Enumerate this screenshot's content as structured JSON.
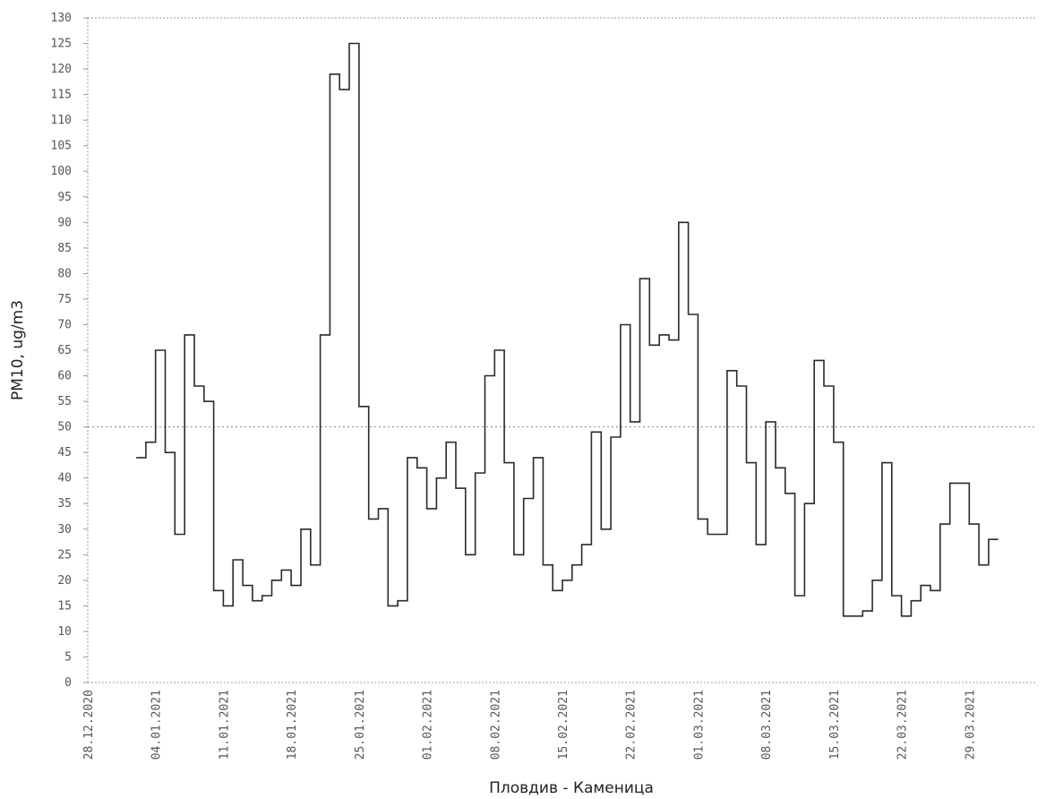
{
  "chart_data": {
    "type": "line",
    "step": true,
    "title": "",
    "xlabel": "Пловдив - Каменица",
    "ylabel": "PM10, ug/m3",
    "ylim": [
      0,
      130
    ],
    "yticks": [
      0,
      5,
      10,
      15,
      20,
      25,
      30,
      35,
      40,
      45,
      50,
      55,
      60,
      65,
      70,
      75,
      80,
      85,
      90,
      95,
      100,
      105,
      110,
      115,
      120,
      125,
      130
    ],
    "xticks": [
      "28.12.2020",
      "04.01.2021",
      "11.01.2021",
      "18.01.2021",
      "25.01.2021",
      "01.02.2021",
      "08.02.2021",
      "15.02.2021",
      "22.02.2021",
      "01.03.2021",
      "08.03.2021",
      "15.03.2021",
      "22.03.2021",
      "29.03.2021"
    ],
    "reference_line": {
      "value": 50
    },
    "grid": false,
    "line_color": "#2a2a2a",
    "series": [
      {
        "x": [
          "2021-01-02",
          "2021-01-03",
          "2021-01-04",
          "2021-01-05",
          "2021-01-06",
          "2021-01-07",
          "2021-01-08",
          "2021-01-09",
          "2021-01-10",
          "2021-01-11",
          "2021-01-12",
          "2021-01-13",
          "2021-01-14",
          "2021-01-15",
          "2021-01-16",
          "2021-01-17",
          "2021-01-18",
          "2021-01-19",
          "2021-01-20",
          "2021-01-21",
          "2021-01-22",
          "2021-01-23",
          "2021-01-24",
          "2021-01-25",
          "2021-01-26",
          "2021-01-27",
          "2021-01-28",
          "2021-01-29",
          "2021-01-30",
          "2021-01-31",
          "2021-02-01",
          "2021-02-02",
          "2021-02-03",
          "2021-02-04",
          "2021-02-05",
          "2021-02-06",
          "2021-02-07",
          "2021-02-08",
          "2021-02-09",
          "2021-02-10",
          "2021-02-11",
          "2021-02-12",
          "2021-02-13",
          "2021-02-14",
          "2021-02-15",
          "2021-02-16",
          "2021-02-17",
          "2021-02-18",
          "2021-02-19",
          "2021-02-20",
          "2021-02-21",
          "2021-02-22",
          "2021-02-23",
          "2021-02-24",
          "2021-02-25",
          "2021-02-26",
          "2021-02-27",
          "2021-02-28",
          "2021-03-01",
          "2021-03-02",
          "2021-03-03",
          "2021-03-04",
          "2021-03-05",
          "2021-03-06",
          "2021-03-07",
          "2021-03-08",
          "2021-03-09",
          "2021-03-10",
          "2021-03-11",
          "2021-03-12",
          "2021-03-13",
          "2021-03-14",
          "2021-03-15",
          "2021-03-16",
          "2021-03-17",
          "2021-03-18",
          "2021-03-19",
          "2021-03-20",
          "2021-03-21",
          "2021-03-22",
          "2021-03-23",
          "2021-03-24",
          "2021-03-25",
          "2021-03-26",
          "2021-03-27",
          "2021-03-28",
          "2021-03-29",
          "2021-03-30",
          "2021-03-31"
        ],
        "values": [
          44,
          47,
          65,
          45,
          29,
          68,
          58,
          55,
          18,
          15,
          24,
          19,
          16,
          17,
          20,
          22,
          19,
          30,
          23,
          68,
          119,
          116,
          125,
          54,
          32,
          34,
          15,
          16,
          44,
          42,
          34,
          40,
          47,
          38,
          25,
          41,
          60,
          65,
          43,
          25,
          36,
          44,
          23,
          18,
          20,
          23,
          27,
          49,
          30,
          48,
          70,
          51,
          79,
          66,
          68,
          67,
          90,
          72,
          32,
          29,
          29,
          61,
          58,
          43,
          27,
          51,
          42,
          37,
          17,
          35,
          63,
          58,
          47,
          13,
          13,
          14,
          20,
          43,
          17,
          13,
          16,
          19,
          18,
          31,
          39,
          39,
          31,
          23,
          28
        ]
      }
    ]
  }
}
